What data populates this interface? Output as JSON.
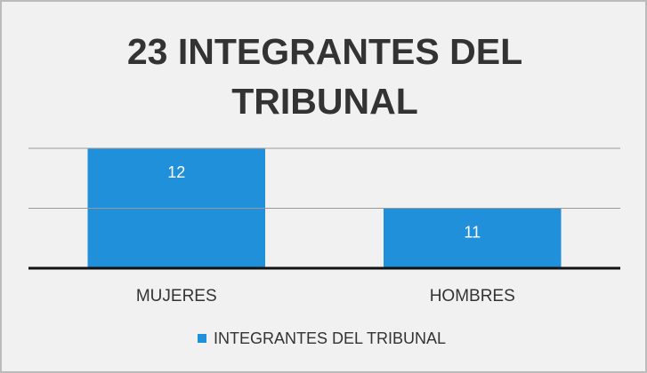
{
  "chart_data": {
    "type": "bar",
    "title": "23 INTEGRANTES DEL TRIBUNAL",
    "categories": [
      "MUJERES",
      "HOMBRES"
    ],
    "series": [
      {
        "name": "INTEGRANTES DEL TRIBUNAL",
        "color": "#2190da",
        "values": [
          12,
          11
        ]
      }
    ],
    "ylim": [
      10,
      12
    ],
    "yticks": [
      10,
      11,
      12
    ],
    "grid": true,
    "legend": "bottom"
  }
}
